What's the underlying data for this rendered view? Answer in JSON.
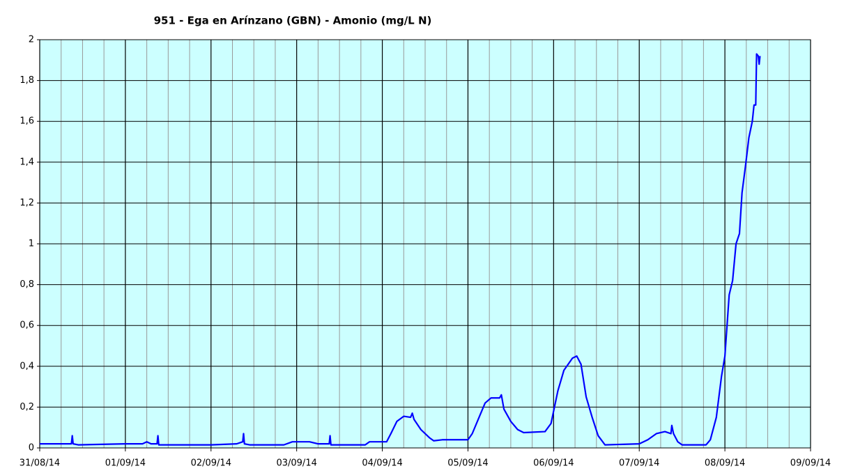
{
  "chart_data": {
    "type": "line",
    "title": "951 - Ega en Arínzano (GBN) - Amonio (mg/L N)",
    "xlim": [
      0,
      9
    ],
    "xticks": [
      {
        "value": 0,
        "label": "31/08/14"
      },
      {
        "value": 1,
        "label": "01/09/14"
      },
      {
        "value": 2,
        "label": "02/09/14"
      },
      {
        "value": 3,
        "label": "03/09/14"
      },
      {
        "value": 4,
        "label": "04/09/14"
      },
      {
        "value": 5,
        "label": "05/09/14"
      },
      {
        "value": 6,
        "label": "06/09/14"
      },
      {
        "value": 7,
        "label": "07/09/14"
      },
      {
        "value": 8,
        "label": "08/09/14"
      },
      {
        "value": 9,
        "label": "09/09/14"
      }
    ],
    "x_minor_ticks": [
      0.25,
      0.5,
      0.75,
      1.25,
      1.5,
      1.75,
      2.25,
      2.5,
      2.75,
      3.25,
      3.5,
      3.75,
      4.25,
      4.5,
      4.75,
      5.25,
      5.5,
      5.75,
      6.25,
      6.5,
      6.75,
      7.25,
      7.5,
      7.75,
      8.25,
      8.5,
      8.75
    ],
    "ylim": [
      0,
      2
    ],
    "yticks": [
      0,
      {
        "value": 0.2,
        "label": "0,2"
      },
      {
        "value": 0.4,
        "label": "0,4"
      },
      {
        "value": 0.6,
        "label": "0,6"
      },
      {
        "value": 0.8,
        "label": "0,8"
      },
      1,
      {
        "value": 1.2,
        "label": "1,2"
      },
      {
        "value": 1.4,
        "label": "1,4"
      },
      {
        "value": 1.6,
        "label": "1,6"
      },
      {
        "value": 1.8,
        "label": "1,8"
      },
      2
    ],
    "grid": true,
    "background": "#ccffff",
    "series": [
      {
        "color": "#0000ff",
        "x": [
          0,
          0.37,
          0.38,
          0.39,
          0.45,
          1.0,
          1.2,
          1.25,
          1.3,
          1.37,
          1.38,
          1.39,
          2.0,
          2.3,
          2.37,
          2.38,
          2.39,
          2.45,
          2.85,
          2.95,
          3.15,
          3.25,
          3.38,
          3.39,
          3.4,
          3.8,
          3.85,
          4.05,
          4.1,
          4.17,
          4.25,
          4.33,
          4.35,
          4.37,
          4.45,
          4.55,
          4.6,
          4.7,
          5.0,
          5.05,
          5.12,
          5.2,
          5.27,
          5.37,
          5.39,
          5.42,
          5.5,
          5.58,
          5.65,
          5.9,
          5.97,
          6.05,
          6.12,
          6.22,
          6.27,
          6.32,
          6.38,
          6.45,
          6.52,
          6.6,
          7.0,
          7.1,
          7.2,
          7.3,
          7.37,
          7.38,
          7.4,
          7.45,
          7.5,
          7.78,
          7.83,
          7.9,
          7.96,
          8.0,
          8.05,
          8.09,
          8.13,
          8.17,
          8.2,
          8.24,
          8.28,
          8.32,
          8.34,
          8.36,
          8.37,
          8.39,
          8.4,
          8.41
        ],
        "values": [
          0.02,
          0.02,
          0.06,
          0.02,
          0.015,
          0.02,
          0.02,
          0.03,
          0.02,
          0.02,
          0.06,
          0.015,
          0.015,
          0.02,
          0.03,
          0.07,
          0.02,
          0.015,
          0.015,
          0.03,
          0.03,
          0.02,
          0.02,
          0.06,
          0.015,
          0.015,
          0.03,
          0.03,
          0.07,
          0.13,
          0.155,
          0.15,
          0.17,
          0.14,
          0.09,
          0.05,
          0.035,
          0.04,
          0.04,
          0.07,
          0.14,
          0.22,
          0.245,
          0.245,
          0.26,
          0.19,
          0.13,
          0.09,
          0.075,
          0.08,
          0.12,
          0.28,
          0.38,
          0.44,
          0.45,
          0.41,
          0.25,
          0.15,
          0.06,
          0.015,
          0.02,
          0.04,
          0.07,
          0.08,
          0.07,
          0.11,
          0.07,
          0.03,
          0.015,
          0.015,
          0.04,
          0.15,
          0.35,
          0.45,
          0.75,
          0.82,
          1.0,
          1.05,
          1.25,
          1.38,
          1.52,
          1.6,
          1.68,
          1.68,
          1.93,
          1.92,
          1.88,
          1.92
        ]
      }
    ]
  }
}
